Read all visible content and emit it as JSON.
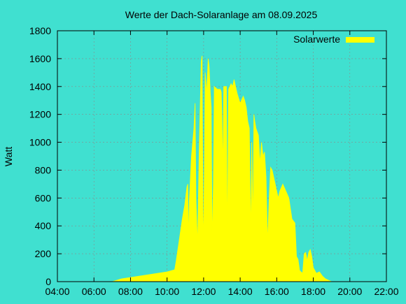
{
  "chart_data": {
    "type": "area",
    "title": "Werte der Dach-Solaranlage am 08.09.2025",
    "xlabel": "",
    "ylabel": "Watt",
    "legend": {
      "placement": "top-right",
      "label": "Solarwerte"
    },
    "grid": true,
    "background_color": "#40e0d0",
    "series_color": "#ffff00",
    "xlim": [
      "04:00",
      "22:00"
    ],
    "ylim": [
      0,
      1800
    ],
    "x_ticks": [
      "04:00",
      "06:00",
      "08:00",
      "10:00",
      "12:00",
      "14:00",
      "16:00",
      "18:00",
      "20:00",
      "22:00"
    ],
    "y_ticks": [
      0,
      200,
      400,
      600,
      800,
      1000,
      1200,
      1400,
      1600,
      1800
    ],
    "series": [
      {
        "name": "Solarwerte",
        "points": [
          [
            "07:00",
            0
          ],
          [
            "07:15",
            10
          ],
          [
            "07:30",
            20
          ],
          [
            "08:00",
            30
          ],
          [
            "08:30",
            40
          ],
          [
            "09:00",
            50
          ],
          [
            "09:30",
            60
          ],
          [
            "10:00",
            70
          ],
          [
            "10:25",
            85
          ],
          [
            "10:30",
            150
          ],
          [
            "10:40",
            300
          ],
          [
            "10:50",
            450
          ],
          [
            "10:58",
            550
          ],
          [
            "11:05",
            680
          ],
          [
            "11:08",
            700
          ],
          [
            "11:10",
            300
          ],
          [
            "11:13",
            580
          ],
          [
            "11:20",
            900
          ],
          [
            "11:28",
            1100
          ],
          [
            "11:32",
            1280
          ],
          [
            "11:35",
            600
          ],
          [
            "11:40",
            260
          ],
          [
            "11:45",
            900
          ],
          [
            "11:52",
            1580
          ],
          [
            "11:55",
            1620
          ],
          [
            "11:58",
            500
          ],
          [
            "12:00",
            270
          ],
          [
            "12:05",
            1500
          ],
          [
            "12:10",
            1350
          ],
          [
            "12:15",
            1600
          ],
          [
            "12:18",
            1550
          ],
          [
            "12:22",
            1350
          ],
          [
            "12:25",
            1250
          ],
          [
            "12:28",
            280
          ],
          [
            "12:32",
            700
          ],
          [
            "12:35",
            1400
          ],
          [
            "12:45",
            1380
          ],
          [
            "12:50",
            1380
          ],
          [
            "12:55",
            1380
          ],
          [
            "12:58",
            1360
          ],
          [
            "13:00",
            1200
          ],
          [
            "13:03",
            800
          ],
          [
            "13:06",
            1400
          ],
          [
            "13:15",
            1400
          ],
          [
            "13:18",
            280
          ],
          [
            "13:22",
            1380
          ],
          [
            "13:30",
            1420
          ],
          [
            "13:35",
            1400
          ],
          [
            "13:40",
            1450
          ],
          [
            "13:45",
            1400
          ],
          [
            "13:50",
            1350
          ],
          [
            "14:00",
            1280
          ],
          [
            "14:10",
            1330
          ],
          [
            "14:15",
            1300
          ],
          [
            "14:20",
            1250
          ],
          [
            "14:25",
            1150
          ],
          [
            "14:30",
            1100
          ],
          [
            "14:35",
            320
          ],
          [
            "14:38",
            1000
          ],
          [
            "14:42",
            400
          ],
          [
            "14:45",
            1200
          ],
          [
            "14:48",
            1150
          ],
          [
            "14:52",
            1100
          ],
          [
            "15:00",
            1050
          ],
          [
            "15:05",
            850
          ],
          [
            "15:10",
            1000
          ],
          [
            "15:15",
            900
          ],
          [
            "15:20",
            930
          ],
          [
            "15:25",
            750
          ],
          [
            "15:30",
            280
          ],
          [
            "15:35",
            600
          ],
          [
            "15:40",
            820
          ],
          [
            "15:45",
            800
          ],
          [
            "15:50",
            750
          ],
          [
            "15:55",
            700
          ],
          [
            "16:00",
            650
          ],
          [
            "16:05",
            600
          ],
          [
            "16:10",
            650
          ],
          [
            "16:20",
            700
          ],
          [
            "16:30",
            650
          ],
          [
            "16:40",
            600
          ],
          [
            "16:50",
            450
          ],
          [
            "17:00",
            420
          ],
          [
            "17:05",
            180
          ],
          [
            "17:10",
            160
          ],
          [
            "17:15",
            80
          ],
          [
            "17:20",
            70
          ],
          [
            "17:25",
            60
          ],
          [
            "17:30",
            200
          ],
          [
            "17:35",
            210
          ],
          [
            "17:40",
            150
          ],
          [
            "17:45",
            210
          ],
          [
            "17:50",
            230
          ],
          [
            "17:55",
            180
          ],
          [
            "18:00",
            100
          ],
          [
            "18:10",
            60
          ],
          [
            "18:20",
            70
          ],
          [
            "18:30",
            40
          ],
          [
            "18:40",
            20
          ],
          [
            "18:50",
            10
          ],
          [
            "19:00",
            0
          ]
        ]
      }
    ]
  }
}
